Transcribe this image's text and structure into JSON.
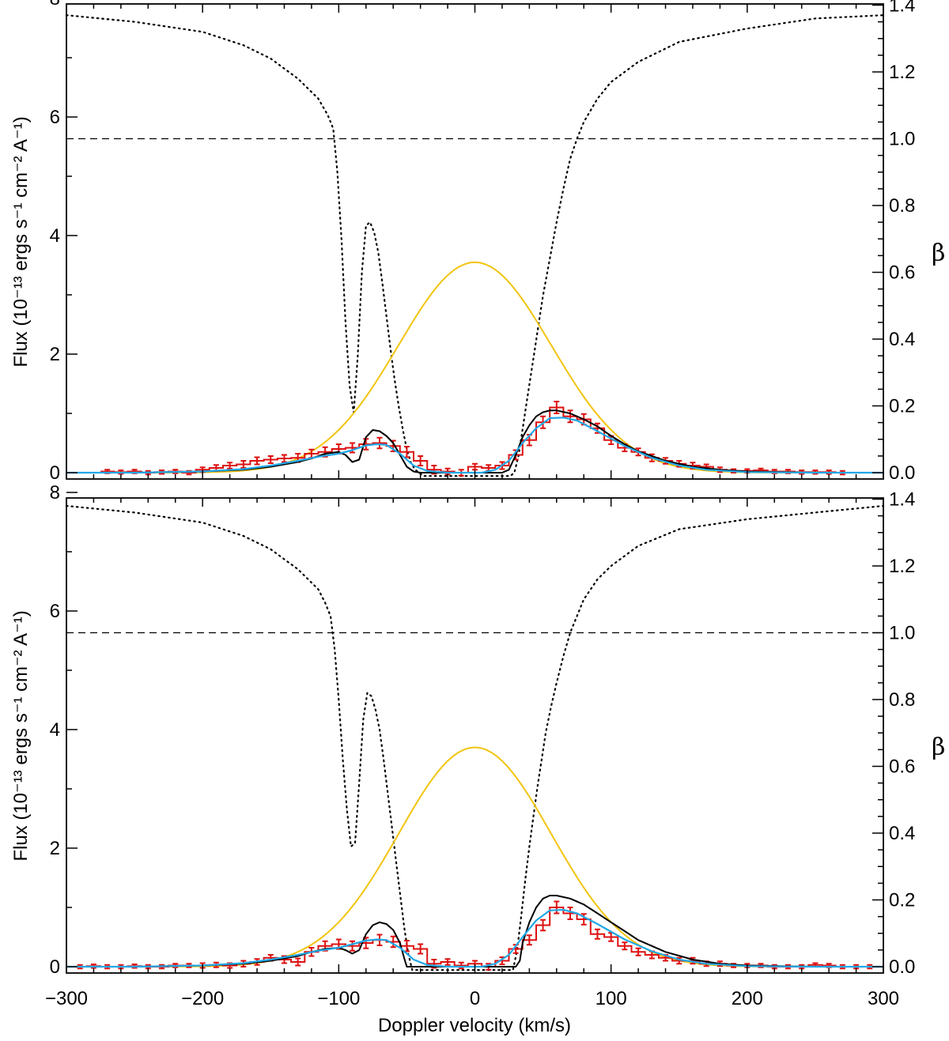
{
  "chart_data": {
    "type": "line",
    "xlabel": "Doppler velocity (km/s)",
    "xlim": [
      -300,
      300
    ],
    "x_ticks": [
      -300,
      -200,
      -100,
      0,
      100,
      200,
      300
    ],
    "ylabel_left": "Flux (10⁻¹³ ergs s⁻¹ cm⁻² A⁻¹)",
    "ylabel_right": "β",
    "ylim_left": [
      0,
      8
    ],
    "y_ticks_left": [
      0,
      2,
      4,
      6,
      8
    ],
    "ylim_right": [
      0,
      1.4
    ],
    "y_ticks_right": [
      "0.0",
      "0.2",
      "0.4",
      "0.6",
      "0.8",
      "1.0",
      "1.2",
      "1.4"
    ],
    "colors": {
      "data": "#dd1111",
      "gaussian": "#f2c40f",
      "blue_model": "#22a8e6",
      "black_model": "#000000",
      "beta": "#000000"
    },
    "panels": [
      {
        "name": "top",
        "beta_level": 1.0,
        "data_step": {
          "x": [
            -270,
            -260,
            -250,
            -240,
            -230,
            -220,
            -210,
            -200,
            -190,
            -180,
            -170,
            -160,
            -150,
            -140,
            -130,
            -120,
            -110,
            -100,
            -90,
            -80,
            -70,
            -60,
            -50,
            -40,
            -30,
            -20,
            -10,
            0,
            10,
            20,
            30,
            40,
            50,
            60,
            70,
            80,
            90,
            100,
            110,
            120,
            130,
            140,
            150,
            160,
            170,
            180,
            190,
            200,
            210,
            220,
            230,
            240,
            250,
            260,
            270
          ],
          "y": [
            0.02,
            0.01,
            0.02,
            0.0,
            0.01,
            0.02,
            0.0,
            0.05,
            0.08,
            0.12,
            0.14,
            0.2,
            0.22,
            0.24,
            0.25,
            0.32,
            0.35,
            0.4,
            0.42,
            0.48,
            0.5,
            0.45,
            0.35,
            0.2,
            0.05,
            0.02,
            0.0,
            0.1,
            0.08,
            0.12,
            0.3,
            0.55,
            0.85,
            1.1,
            0.95,
            0.9,
            0.75,
            0.55,
            0.42,
            0.35,
            0.25,
            0.2,
            0.15,
            0.12,
            0.1,
            0.05,
            0.03,
            0.03,
            0.04,
            0.02,
            0.02,
            0.01,
            0.01,
            0.01,
            0.0
          ],
          "err": [
            0.03,
            0.03,
            0.03,
            0.03,
            0.03,
            0.03,
            0.03,
            0.04,
            0.05,
            0.05,
            0.06,
            0.06,
            0.06,
            0.06,
            0.07,
            0.07,
            0.08,
            0.08,
            0.08,
            0.09,
            0.09,
            0.09,
            0.09,
            0.08,
            0.07,
            0.05,
            0.05,
            0.05,
            0.05,
            0.06,
            0.08,
            0.09,
            0.1,
            0.1,
            0.1,
            0.09,
            0.08,
            0.07,
            0.06,
            0.06,
            0.06,
            0.05,
            0.05,
            0.05,
            0.04,
            0.04,
            0.03,
            0.03,
            0.03,
            0.03,
            0.03,
            0.03,
            0.03,
            0.03,
            0.03
          ]
        },
        "gaussian": {
          "amplitude": 3.55,
          "center": 0,
          "sigma": 56
        },
        "blue_model": {
          "x": [
            -300,
            -250,
            -200,
            -170,
            -150,
            -130,
            -115,
            -100,
            -90,
            -80,
            -72,
            -65,
            -55,
            -45,
            -35,
            -20,
            -5,
            5,
            15,
            25,
            35,
            45,
            55,
            65,
            75,
            90,
            110,
            130,
            150,
            170,
            200,
            250,
            300
          ],
          "y": [
            0.0,
            0.0,
            0.02,
            0.06,
            0.12,
            0.2,
            0.27,
            0.32,
            0.38,
            0.46,
            0.48,
            0.47,
            0.32,
            0.12,
            0.03,
            0.0,
            0.0,
            0.0,
            0.05,
            0.2,
            0.5,
            0.75,
            0.92,
            0.93,
            0.88,
            0.7,
            0.45,
            0.25,
            0.12,
            0.05,
            0.01,
            0.0,
            0.0
          ]
        },
        "black_model": {
          "x": [
            -300,
            -250,
            -200,
            -170,
            -150,
            -130,
            -120,
            -110,
            -100,
            -95,
            -90,
            -85,
            -80,
            -75,
            -70,
            -65,
            -60,
            -55,
            -50,
            -45,
            -40,
            -30,
            -20,
            -10,
            0,
            10,
            20,
            25,
            30,
            35,
            40,
            45,
            50,
            55,
            60,
            70,
            80,
            90,
            100,
            110,
            120,
            140,
            160,
            180,
            200,
            250,
            300
          ],
          "y": [
            0.0,
            0.0,
            0.02,
            0.05,
            0.1,
            0.18,
            0.24,
            0.32,
            0.35,
            0.3,
            0.18,
            0.22,
            0.6,
            0.72,
            0.7,
            0.62,
            0.5,
            0.3,
            0.1,
            0.02,
            0.0,
            0.0,
            0.0,
            0.0,
            0.0,
            0.0,
            0.0,
            0.05,
            0.3,
            0.6,
            0.8,
            0.95,
            1.02,
            1.05,
            1.05,
            1.0,
            0.9,
            0.78,
            0.62,
            0.48,
            0.36,
            0.2,
            0.1,
            0.05,
            0.02,
            0.0,
            0.0
          ]
        },
        "beta": {
          "x": [
            -300,
            -250,
            -200,
            -170,
            -150,
            -130,
            -115,
            -108,
            -104,
            -101,
            -98,
            -95,
            -92,
            -89,
            -86,
            -83,
            -80,
            -77,
            -74,
            -71,
            -68,
            -65,
            -62,
            -59,
            -56,
            -53,
            -50,
            -47,
            -44,
            -41,
            -38,
            -35,
            -32,
            -29,
            -26,
            -23,
            -20,
            20,
            23,
            26,
            29,
            32,
            35,
            38,
            41,
            44,
            47,
            50,
            55,
            60,
            65,
            70,
            75,
            80,
            90,
            100,
            120,
            150,
            200,
            250,
            300
          ],
          "y": [
            1.37,
            1.35,
            1.32,
            1.28,
            1.24,
            1.18,
            1.12,
            1.07,
            1.03,
            0.9,
            0.7,
            0.45,
            0.26,
            0.18,
            0.35,
            0.6,
            0.74,
            0.75,
            0.72,
            0.66,
            0.57,
            0.47,
            0.37,
            0.28,
            0.2,
            0.13,
            0.07,
            0.03,
            0.01,
            0.0,
            -0.01,
            -0.01,
            -0.01,
            -0.01,
            -0.01,
            -0.01,
            -0.01,
            -0.01,
            -0.01,
            -0.01,
            0.0,
            0.05,
            0.13,
            0.21,
            0.29,
            0.37,
            0.45,
            0.53,
            0.64,
            0.75,
            0.85,
            0.94,
            1.0,
            1.05,
            1.12,
            1.17,
            1.23,
            1.29,
            1.33,
            1.36,
            1.37
          ]
        }
      },
      {
        "name": "bottom",
        "beta_level": 1.0,
        "data_step": {
          "x": [
            -290,
            -280,
            -270,
            -260,
            -250,
            -240,
            -230,
            -220,
            -210,
            -200,
            -190,
            -180,
            -170,
            -160,
            -150,
            -140,
            -130,
            -120,
            -110,
            -100,
            -90,
            -80,
            -70,
            -60,
            -50,
            -40,
            -30,
            -20,
            -10,
            0,
            10,
            20,
            30,
            40,
            50,
            60,
            70,
            80,
            90,
            100,
            110,
            120,
            130,
            140,
            150,
            160,
            170,
            180,
            190,
            200,
            210,
            220,
            230,
            240,
            250,
            260,
            270,
            280,
            290
          ],
          "y": [
            0.0,
            0.01,
            0.0,
            0.0,
            0.01,
            0.0,
            0.0,
            0.02,
            0.02,
            0.02,
            0.03,
            0.02,
            0.05,
            0.08,
            0.15,
            0.12,
            0.08,
            0.25,
            0.35,
            0.38,
            0.35,
            0.4,
            0.45,
            0.42,
            0.35,
            0.3,
            0.05,
            0.08,
            0.02,
            0.05,
            0.0,
            0.1,
            0.3,
            0.45,
            0.7,
            1.0,
            0.9,
            0.8,
            0.55,
            0.5,
            0.35,
            0.25,
            0.2,
            0.15,
            0.1,
            0.1,
            0.05,
            0.05,
            0.02,
            0.02,
            0.02,
            0.0,
            0.0,
            0.0,
            0.03,
            0.02,
            0.0,
            0.0,
            0.0
          ],
          "err": [
            0.03,
            0.03,
            0.03,
            0.03,
            0.03,
            0.03,
            0.03,
            0.03,
            0.03,
            0.04,
            0.04,
            0.04,
            0.05,
            0.05,
            0.05,
            0.06,
            0.06,
            0.07,
            0.08,
            0.08,
            0.08,
            0.09,
            0.09,
            0.09,
            0.09,
            0.08,
            0.07,
            0.05,
            0.05,
            0.05,
            0.05,
            0.06,
            0.07,
            0.08,
            0.09,
            0.1,
            0.1,
            0.09,
            0.08,
            0.07,
            0.06,
            0.06,
            0.06,
            0.05,
            0.05,
            0.05,
            0.04,
            0.04,
            0.03,
            0.03,
            0.03,
            0.03,
            0.03,
            0.03,
            0.03,
            0.03,
            0.03,
            0.03,
            0.03
          ]
        },
        "gaussian": {
          "amplitude": 3.7,
          "center": 0,
          "sigma": 56
        },
        "blue_model": {
          "x": [
            -300,
            -250,
            -200,
            -170,
            -150,
            -130,
            -115,
            -100,
            -90,
            -80,
            -72,
            -65,
            -55,
            -45,
            -35,
            -20,
            -5,
            5,
            15,
            25,
            35,
            45,
            55,
            65,
            75,
            90,
            110,
            130,
            150,
            170,
            200,
            250,
            300
          ],
          "y": [
            0.0,
            0.0,
            0.02,
            0.06,
            0.12,
            0.2,
            0.27,
            0.32,
            0.38,
            0.44,
            0.46,
            0.45,
            0.32,
            0.12,
            0.03,
            0.0,
            0.0,
            0.0,
            0.05,
            0.2,
            0.5,
            0.78,
            0.95,
            0.96,
            0.9,
            0.72,
            0.46,
            0.26,
            0.12,
            0.05,
            0.01,
            0.0,
            0.0
          ]
        },
        "black_model": {
          "x": [
            -300,
            -250,
            -200,
            -170,
            -150,
            -130,
            -120,
            -110,
            -100,
            -95,
            -90,
            -85,
            -80,
            -75,
            -70,
            -65,
            -60,
            -55,
            -52,
            -50,
            -45,
            -40,
            -30,
            -20,
            -10,
            0,
            10,
            20,
            25,
            30,
            33,
            35,
            40,
            45,
            50,
            55,
            60,
            70,
            80,
            90,
            100,
            110,
            120,
            140,
            160,
            180,
            200,
            250,
            300
          ],
          "y": [
            0.0,
            0.0,
            0.02,
            0.05,
            0.1,
            0.18,
            0.25,
            0.3,
            0.32,
            0.28,
            0.22,
            0.28,
            0.55,
            0.7,
            0.75,
            0.72,
            0.62,
            0.4,
            0.15,
            0.0,
            0.0,
            0.0,
            0.0,
            0.0,
            0.0,
            0.0,
            0.0,
            0.0,
            0.0,
            0.0,
            0.1,
            0.4,
            0.75,
            1.0,
            1.15,
            1.2,
            1.2,
            1.15,
            1.05,
            0.9,
            0.75,
            0.6,
            0.45,
            0.25,
            0.12,
            0.05,
            0.02,
            0.0,
            0.0
          ]
        },
        "beta": {
          "x": [
            -300,
            -250,
            -200,
            -170,
            -150,
            -130,
            -115,
            -110,
            -106,
            -103,
            -100,
            -97,
            -94,
            -91,
            -88,
            -85,
            -82,
            -79,
            -76,
            -73,
            -70,
            -67,
            -64,
            -61,
            -58,
            -55,
            -52,
            -49,
            -46,
            -30,
            -10,
            10,
            20,
            28,
            31,
            34,
            37,
            40,
            43,
            46,
            49,
            52,
            56,
            60,
            65,
            70,
            75,
            80,
            90,
            100,
            120,
            150,
            200,
            250,
            300
          ],
          "y": [
            1.38,
            1.36,
            1.33,
            1.29,
            1.25,
            1.19,
            1.13,
            1.09,
            1.05,
            0.95,
            0.8,
            0.62,
            0.47,
            0.36,
            0.37,
            0.55,
            0.74,
            0.82,
            0.81,
            0.77,
            0.71,
            0.62,
            0.52,
            0.42,
            0.32,
            0.22,
            0.12,
            0.04,
            -0.01,
            -0.01,
            -0.01,
            -0.01,
            -0.01,
            -0.01,
            0.05,
            0.15,
            0.26,
            0.36,
            0.45,
            0.54,
            0.62,
            0.7,
            0.78,
            0.85,
            0.93,
            1.0,
            1.05,
            1.1,
            1.16,
            1.2,
            1.26,
            1.31,
            1.34,
            1.36,
            1.38
          ]
        }
      }
    ]
  }
}
